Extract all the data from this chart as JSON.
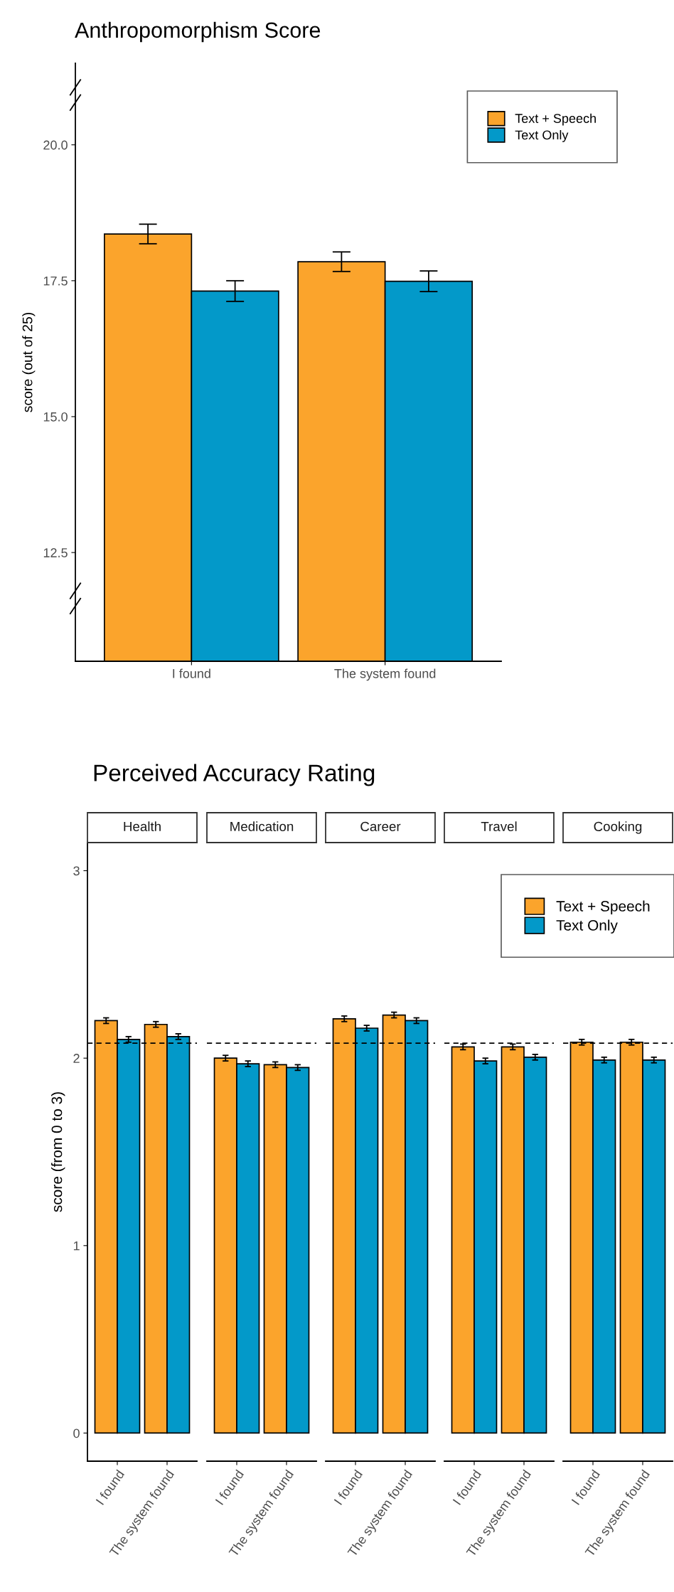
{
  "chart_data": [
    {
      "type": "bar",
      "title": "Anthropomorphism Score",
      "ylabel": "score (out of 25)",
      "categories": [
        "I found",
        "The system found"
      ],
      "series": [
        {
          "name": "Text + Speech",
          "color": "#fba42c",
          "values": [
            18.36,
            17.85
          ],
          "errors": [
            0.18,
            0.18
          ]
        },
        {
          "name": "Text Only",
          "color": "#0399c9",
          "values": [
            17.31,
            17.49
          ],
          "errors": [
            0.19,
            0.19
          ]
        }
      ],
      "ylim": [
        10.5,
        21.5
      ],
      "yticks": [
        {
          "value": 12.5,
          "label": "12.5"
        },
        {
          "value": 15,
          "label": "15.0"
        },
        {
          "value": 17.5,
          "label": "17.5"
        },
        {
          "value": 20,
          "label": "20.0"
        }
      ],
      "legend": "top right"
    },
    {
      "type": "bar",
      "title": "Perceived Accuracy Rating",
      "subtitle": "Health",
      "ylabel": "score (from 0 to 3)",
      "categories": [
        "I found",
        "The system found"
      ],
      "series": [
        {
          "color": "#fba42c",
          "values": [
            2.2,
            2.18
          ],
          "errors": [
            0.015,
            0.015
          ]
        },
        {
          "color": "#0399c9",
          "values": [
            2.1,
            2.115
          ],
          "errors": [
            0.015,
            0.015
          ]
        }
      ],
      "ylim": [
        -0.15,
        3.15
      ],
      "yticks": [
        0,
        1,
        2,
        3
      ],
      "ref_lines": [
        {
          "axis": "y",
          "value": 2.08,
          "line_style": "dashed"
        }
      ]
    },
    {
      "type": "bar",
      "subtitle": "Medication",
      "categories": [
        "I found",
        "The system found"
      ],
      "series": [
        {
          "color": "#fba42c",
          "values": [
            2.0,
            1.965
          ],
          "errors": [
            0.015,
            0.015
          ]
        },
        {
          "color": "#0399c9",
          "values": [
            1.97,
            1.95
          ],
          "errors": [
            0.015,
            0.015
          ]
        }
      ],
      "ylim": [
        -0.15,
        3.15
      ],
      "yticks": [
        0,
        1,
        2,
        3
      ],
      "tick_labels": "x",
      "ref_lines": [
        {
          "axis": "y",
          "value": 2.08,
          "line_style": "dashed"
        }
      ]
    },
    {
      "type": "bar",
      "subtitle": "Career",
      "categories": [
        "I found",
        "The system found"
      ],
      "series": [
        {
          "color": "#fba42c",
          "values": [
            2.21,
            2.23
          ],
          "errors": [
            0.015,
            0.015
          ]
        },
        {
          "color": "#0399c9",
          "values": [
            2.16,
            2.2
          ],
          "errors": [
            0.015,
            0.015
          ]
        }
      ],
      "ylim": [
        -0.15,
        3.15
      ],
      "yticks": [
        0,
        1,
        2,
        3
      ],
      "tick_labels": "x",
      "ref_lines": [
        {
          "axis": "y",
          "value": 2.08,
          "line_style": "dashed"
        }
      ]
    },
    {
      "type": "bar",
      "subtitle": "Travel",
      "categories": [
        "I found",
        "The system found"
      ],
      "series": [
        {
          "color": "#fba42c",
          "values": [
            2.06,
            2.06
          ],
          "errors": [
            0.015,
            0.015
          ]
        },
        {
          "color": "#0399c9",
          "values": [
            1.985,
            2.005
          ],
          "errors": [
            0.015,
            0.015
          ]
        }
      ],
      "ylim": [
        -0.15,
        3.15
      ],
      "yticks": [
        0,
        1,
        2,
        3
      ],
      "tick_labels": "x",
      "ref_lines": [
        {
          "axis": "y",
          "value": 2.08,
          "line_style": "dashed"
        }
      ]
    },
    {
      "type": "bar",
      "subtitle": "Cooking",
      "categories": [
        "I found",
        "The system found"
      ],
      "series": [
        {
          "name": "Text + Speech",
          "color": "#fba42c",
          "values": [
            2.085,
            2.085
          ],
          "errors": [
            0.015,
            0.015
          ]
        },
        {
          "name": "Text Only",
          "color": "#0399c9",
          "values": [
            1.99,
            1.99
          ],
          "errors": [
            0.015,
            0.015
          ]
        }
      ],
      "ylim": [
        -0.15,
        3.15
      ],
      "yticks": [
        0,
        1,
        2,
        3
      ],
      "tick_labels": "x",
      "ref_lines": [
        {
          "axis": "y",
          "value": 2.08,
          "line_style": "dashed"
        }
      ],
      "legend": "top left"
    }
  ]
}
